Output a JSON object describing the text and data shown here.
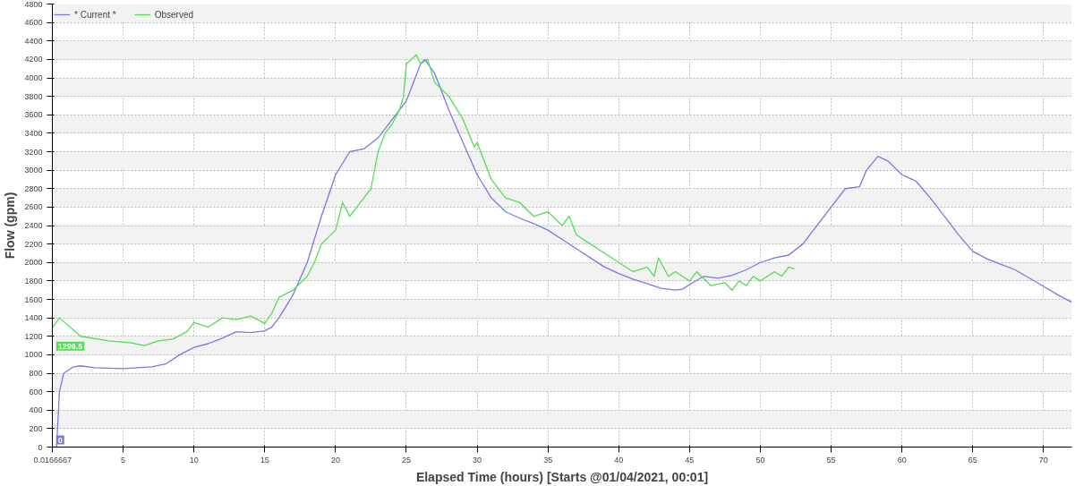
{
  "chart_data": {
    "type": "line",
    "xlabel": "Elapsed Time (hours) [Starts @01/04/2021, 00:01]",
    "ylabel": "Flow (gpm)",
    "xlim": [
      0,
      72
    ],
    "ylim": [
      0,
      4800
    ],
    "xticks": [
      {
        "value": 0.0166667,
        "label": "0.0166667"
      },
      5,
      10,
      15,
      20,
      25,
      30,
      35,
      40,
      45,
      50,
      55,
      60,
      65,
      70
    ],
    "yticks": [
      0,
      200,
      400,
      600,
      800,
      1000,
      1200,
      1400,
      1600,
      1800,
      2000,
      2200,
      2400,
      2600,
      2800,
      3000,
      3200,
      3400,
      3600,
      3800,
      4000,
      4200,
      4400,
      4600,
      4800
    ],
    "grid": true,
    "legend": "top left",
    "line_style": "solid",
    "marker": "none",
    "annotations": [
      {
        "text": "0",
        "x": 0.0166667,
        "y": 0
      },
      {
        "text": "1296.5",
        "x": 0.0166667,
        "y": 1296.5
      }
    ],
    "series": [
      {
        "name": "* Current *",
        "color": "#7878e8",
        "x": [
          0.0166667,
          0.3,
          0.5,
          0.8,
          1.5,
          2,
          3,
          5,
          7,
          8,
          9,
          10,
          11,
          12,
          13,
          14,
          15,
          15.5,
          16,
          17,
          18,
          19,
          20,
          21,
          22,
          23,
          24,
          25,
          25.5,
          26,
          26.3,
          27,
          28,
          29,
          30,
          31,
          32,
          33,
          34,
          35,
          36,
          37,
          38,
          39,
          40,
          41,
          42,
          43,
          44,
          44.5,
          45,
          46,
          47,
          48,
          49,
          50,
          51,
          52,
          53,
          54,
          55,
          56,
          57,
          57.5,
          58.3,
          59,
          60,
          61,
          62,
          63,
          64,
          65,
          66,
          67,
          68,
          69,
          70,
          71,
          72
        ],
        "values": [
          0,
          0,
          600,
          800,
          870,
          880,
          860,
          850,
          870,
          900,
          1000,
          1080,
          1120,
          1180,
          1250,
          1240,
          1260,
          1300,
          1400,
          1650,
          2000,
          2500,
          2950,
          3200,
          3230,
          3350,
          3550,
          3750,
          3950,
          4150,
          4200,
          4050,
          3650,
          3300,
          2950,
          2700,
          2550,
          2480,
          2420,
          2350,
          2250,
          2150,
          2050,
          1950,
          1880,
          1820,
          1770,
          1720,
          1700,
          1710,
          1760,
          1850,
          1830,
          1860,
          1920,
          2000,
          2050,
          2080,
          2200,
          2400,
          2600,
          2800,
          2820,
          3000,
          3150,
          3100,
          2950,
          2880,
          2700,
          2500,
          2300,
          2120,
          2040,
          1980,
          1920,
          1830,
          1740,
          1650,
          1570
        ]
      },
      {
        "name": "Observed",
        "color": "#55dd55",
        "x": [
          0.0166667,
          0.5,
          2,
          4,
          5.5,
          6.5,
          7.5,
          8.5,
          9.5,
          10,
          11,
          12,
          13,
          14,
          15,
          15.5,
          16,
          17,
          18,
          18.5,
          19,
          20,
          20.5,
          21,
          22,
          22.5,
          23,
          23.5,
          24,
          24.5,
          24.8,
          25,
          25.7,
          26,
          26.5,
          27,
          28,
          29,
          29.8,
          30,
          31,
          32,
          33,
          34,
          35,
          36,
          36.5,
          37,
          38,
          39,
          40,
          41,
          42,
          42.5,
          42.8,
          43.5,
          44,
          45,
          45.5,
          46.5,
          47.5,
          48,
          48.5,
          49,
          49.5,
          50,
          51,
          51.5,
          52,
          52.4
        ],
        "values": [
          1296.5,
          1400,
          1200,
          1150,
          1130,
          1100,
          1150,
          1170,
          1250,
          1350,
          1300,
          1400,
          1380,
          1420,
          1340,
          1450,
          1620,
          1700,
          1850,
          2000,
          2200,
          2350,
          2650,
          2500,
          2700,
          2800,
          3200,
          3400,
          3500,
          3650,
          3800,
          4150,
          4250,
          4150,
          4200,
          3950,
          3800,
          3550,
          3250,
          3300,
          2900,
          2700,
          2650,
          2500,
          2550,
          2400,
          2500,
          2300,
          2200,
          2100,
          2000,
          1900,
          1950,
          1850,
          2050,
          1850,
          1900,
          1800,
          1900,
          1750,
          1780,
          1700,
          1800,
          1750,
          1850,
          1800,
          1900,
          1850,
          1950,
          1930
        ]
      }
    ]
  }
}
